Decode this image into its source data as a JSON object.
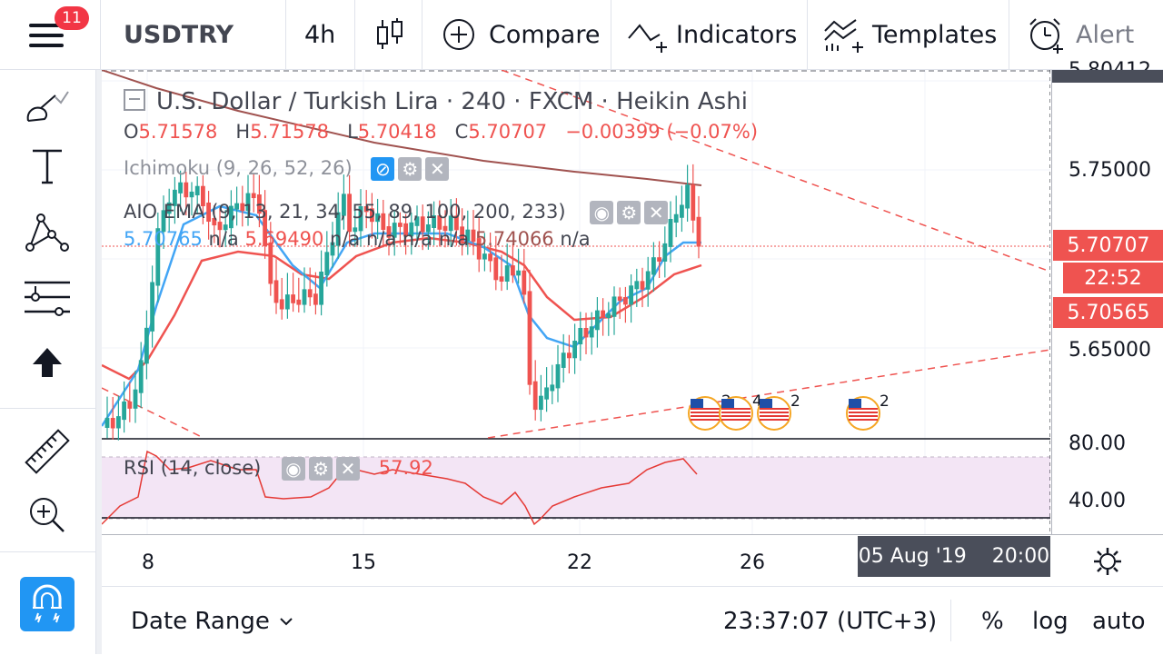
{
  "topbar": {
    "notification_count": "11",
    "symbol": "USDTRY",
    "interval": "4h",
    "compare_label": "Compare",
    "indicators_label": "Indicators",
    "templates_label": "Templates",
    "alert_label": "Alert"
  },
  "legend": {
    "title": "U.S. Dollar / Turkish Lira · 240 · FXCM · Heikin Ashi",
    "o_label": "O",
    "o_value": "5.71578",
    "h_label": "H",
    "h_value": "5.71578",
    "l_label": "L",
    "l_value": "5.70418",
    "c_label": "C",
    "c_value": "5.70707",
    "change": "−0.00399 (−0.07%)",
    "ichimoku": "Ichimoku (9, 26, 52, 26)",
    "aio_ema": "AIO EMA (9, 13, 21, 34, 55, 89, 100, 200, 233)",
    "ema_v1": "5.70765",
    "ema_v2": "5.69490",
    "ema_v3": "5.74066",
    "na": "n/a",
    "rsi": "RSI (14, close)",
    "rsi_value": "57.92"
  },
  "price_axis": {
    "top_partial": "5.80412",
    "p1": "5.75000",
    "p2": "5.65000",
    "current_price": "5.70707",
    "countdown": "22:52",
    "ema_tag": "5.70565",
    "rsi_80": "80.00",
    "rsi_40": "40.00"
  },
  "time_axis": {
    "t1": "8",
    "t2": "15",
    "t3": "22",
    "t4": "26",
    "cursor_date": "05 Aug '19",
    "cursor_time": "20:00"
  },
  "events": [
    {
      "count": "2"
    },
    {
      "count": "4"
    },
    {
      "count": "2"
    },
    {
      "count": "2"
    }
  ],
  "bottombar": {
    "date_range": "Date Range",
    "clock": "23:37:07 (UTC+3)",
    "percent": "%",
    "log": "log",
    "auto": "auto"
  },
  "colors": {
    "up": "#26a69a",
    "down": "#ef5350",
    "ema_blue": "#42a5f5",
    "ema_red": "#ef5350",
    "ema_brown": "#a0524f",
    "rsi_bg": "#f3e5f5",
    "accent": "#2196f3"
  }
}
